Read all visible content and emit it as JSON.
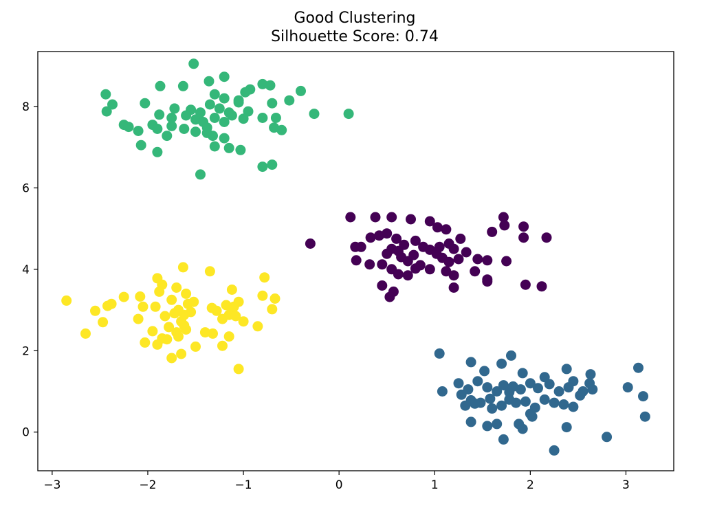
{
  "chart_data": {
    "type": "scatter",
    "title": "Good Clustering",
    "subtitle": "Silhouette Score: 0.74",
    "xlabel": "",
    "ylabel": "",
    "xlim": [
      -3.15,
      3.5
    ],
    "ylim": [
      -0.95,
      9.35
    ],
    "xticks": [
      -3,
      -2,
      -1,
      0,
      1,
      2,
      3
    ],
    "xtick_labels": [
      "−3",
      "−2",
      "−1",
      "0",
      "1",
      "2",
      "3"
    ],
    "yticks": [
      0,
      2,
      4,
      6,
      8
    ],
    "ytick_labels": [
      "0",
      "2",
      "4",
      "6",
      "8"
    ],
    "grid": false,
    "legend": "none",
    "series": [
      {
        "color": "#440154",
        "points": [
          [
            0.12,
            5.28
          ],
          [
            0.38,
            5.28
          ],
          [
            0.55,
            5.28
          ],
          [
            0.75,
            5.23
          ],
          [
            0.95,
            5.18
          ],
          [
            1.03,
            5.03
          ],
          [
            1.12,
            4.98
          ],
          [
            1.72,
            5.28
          ],
          [
            1.73,
            5.08
          ],
          [
            1.93,
            5.05
          ],
          [
            1.93,
            4.78
          ],
          [
            2.17,
            4.78
          ],
          [
            1.6,
            4.92
          ],
          [
            -0.3,
            4.63
          ],
          [
            0.17,
            4.55
          ],
          [
            0.23,
            4.55
          ],
          [
            0.33,
            4.78
          ],
          [
            0.42,
            4.83
          ],
          [
            0.5,
            4.88
          ],
          [
            0.6,
            4.75
          ],
          [
            0.68,
            4.6
          ],
          [
            0.8,
            4.7
          ],
          [
            0.88,
            4.55
          ],
          [
            0.95,
            4.48
          ],
          [
            1.05,
            4.55
          ],
          [
            1.15,
            4.63
          ],
          [
            1.2,
            4.5
          ],
          [
            1.27,
            4.75
          ],
          [
            1.33,
            4.42
          ],
          [
            1.45,
            4.25
          ],
          [
            1.55,
            4.22
          ],
          [
            1.75,
            4.2
          ],
          [
            0.18,
            4.22
          ],
          [
            0.32,
            4.12
          ],
          [
            0.5,
            4.38
          ],
          [
            0.55,
            4.5
          ],
          [
            0.62,
            4.45
          ],
          [
            0.65,
            4.3
          ],
          [
            0.72,
            4.2
          ],
          [
            0.78,
            4.35
          ],
          [
            0.85,
            4.1
          ],
          [
            0.95,
            4.0
          ],
          [
            1.02,
            4.38
          ],
          [
            1.08,
            4.28
          ],
          [
            1.15,
            4.18
          ],
          [
            1.25,
            4.25
          ],
          [
            0.45,
            4.12
          ],
          [
            0.55,
            4.0
          ],
          [
            0.62,
            3.88
          ],
          [
            0.72,
            3.85
          ],
          [
            0.8,
            4.02
          ],
          [
            1.12,
            3.95
          ],
          [
            1.2,
            3.85
          ],
          [
            1.42,
            3.95
          ],
          [
            1.55,
            3.75
          ],
          [
            1.95,
            3.62
          ],
          [
            2.12,
            3.58
          ],
          [
            0.45,
            3.6
          ],
          [
            0.57,
            3.45
          ],
          [
            0.53,
            3.32
          ],
          [
            1.2,
            3.55
          ],
          [
            1.55,
            3.7
          ]
        ]
      },
      {
        "color": "#31688e",
        "points": [
          [
            1.05,
            1.93
          ],
          [
            1.38,
            1.72
          ],
          [
            1.52,
            1.5
          ],
          [
            1.7,
            1.68
          ],
          [
            1.8,
            1.88
          ],
          [
            1.92,
            1.45
          ],
          [
            2.15,
            1.35
          ],
          [
            2.38,
            1.55
          ],
          [
            2.45,
            1.25
          ],
          [
            2.63,
            1.42
          ],
          [
            3.13,
            1.58
          ],
          [
            1.25,
            1.2
          ],
          [
            1.35,
            1.05
          ],
          [
            1.45,
            1.25
          ],
          [
            1.55,
            1.1
          ],
          [
            1.65,
            1.0
          ],
          [
            1.72,
            1.15
          ],
          [
            1.78,
            0.98
          ],
          [
            1.82,
            1.12
          ],
          [
            1.9,
            1.05
          ],
          [
            2.0,
            1.2
          ],
          [
            2.08,
            1.08
          ],
          [
            2.2,
            1.18
          ],
          [
            2.3,
            1.0
          ],
          [
            2.4,
            1.1
          ],
          [
            2.55,
            1.0
          ],
          [
            2.62,
            1.2
          ],
          [
            2.65,
            1.05
          ],
          [
            3.02,
            1.1
          ],
          [
            1.08,
            1.0
          ],
          [
            1.28,
            0.92
          ],
          [
            1.38,
            0.78
          ],
          [
            1.48,
            0.72
          ],
          [
            1.58,
            0.82
          ],
          [
            1.7,
            0.65
          ],
          [
            1.78,
            0.8
          ],
          [
            1.85,
            0.72
          ],
          [
            1.95,
            0.75
          ],
          [
            2.05,
            0.6
          ],
          [
            2.15,
            0.8
          ],
          [
            2.25,
            0.72
          ],
          [
            2.35,
            0.68
          ],
          [
            2.45,
            0.62
          ],
          [
            2.52,
            0.9
          ],
          [
            3.18,
            0.88
          ],
          [
            1.32,
            0.65
          ],
          [
            1.42,
            0.7
          ],
          [
            1.6,
            0.58
          ],
          [
            2.0,
            0.45
          ],
          [
            2.02,
            0.38
          ],
          [
            3.2,
            0.38
          ],
          [
            1.38,
            0.25
          ],
          [
            1.55,
            0.15
          ],
          [
            1.65,
            0.2
          ],
          [
            1.88,
            0.2
          ],
          [
            1.92,
            0.08
          ],
          [
            2.38,
            0.12
          ],
          [
            1.72,
            -0.18
          ],
          [
            2.25,
            -0.45
          ],
          [
            2.8,
            -0.12
          ]
        ]
      },
      {
        "color": "#35b779",
        "points": [
          [
            -1.52,
            9.05
          ],
          [
            -1.2,
            8.73
          ],
          [
            -0.8,
            8.55
          ],
          [
            -0.72,
            8.52
          ],
          [
            -0.93,
            8.42
          ],
          [
            -1.63,
            8.5
          ],
          [
            -1.87,
            8.5
          ],
          [
            -1.36,
            8.62
          ],
          [
            -0.4,
            8.38
          ],
          [
            -0.98,
            8.35
          ],
          [
            -2.44,
            8.3
          ],
          [
            -1.3,
            8.3
          ],
          [
            -1.2,
            8.2
          ],
          [
            -1.05,
            8.15
          ],
          [
            -2.37,
            8.05
          ],
          [
            -2.03,
            8.08
          ],
          [
            -1.72,
            7.95
          ],
          [
            -1.55,
            7.92
          ],
          [
            -1.45,
            7.85
          ],
          [
            -1.35,
            8.05
          ],
          [
            -1.25,
            7.95
          ],
          [
            -1.15,
            7.85
          ],
          [
            -1.05,
            8.1
          ],
          [
            -0.95,
            7.88
          ],
          [
            -0.7,
            8.08
          ],
          [
            -0.52,
            8.15
          ],
          [
            -0.26,
            7.82
          ],
          [
            0.1,
            7.82
          ],
          [
            -2.43,
            7.88
          ],
          [
            -1.88,
            7.8
          ],
          [
            -1.75,
            7.72
          ],
          [
            -1.6,
            7.78
          ],
          [
            -1.5,
            7.68
          ],
          [
            -1.42,
            7.62
          ],
          [
            -1.3,
            7.72
          ],
          [
            -1.2,
            7.62
          ],
          [
            -1.12,
            7.78
          ],
          [
            -1.0,
            7.7
          ],
          [
            -0.8,
            7.72
          ],
          [
            -0.66,
            7.72
          ],
          [
            -2.25,
            7.55
          ],
          [
            -2.2,
            7.5
          ],
          [
            -1.95,
            7.55
          ],
          [
            -1.9,
            7.45
          ],
          [
            -1.75,
            7.52
          ],
          [
            -1.62,
            7.45
          ],
          [
            -1.5,
            7.38
          ],
          [
            -1.38,
            7.48
          ],
          [
            -1.32,
            7.28
          ],
          [
            -1.2,
            7.22
          ],
          [
            -2.1,
            7.4
          ],
          [
            -1.8,
            7.28
          ],
          [
            -1.38,
            7.35
          ],
          [
            -0.6,
            7.42
          ],
          [
            -0.68,
            7.48
          ],
          [
            -2.07,
            7.05
          ],
          [
            -1.3,
            7.02
          ],
          [
            -1.15,
            6.98
          ],
          [
            -1.03,
            6.93
          ],
          [
            -1.9,
            6.88
          ],
          [
            -0.8,
            6.52
          ],
          [
            -0.7,
            6.57
          ],
          [
            -1.45,
            6.33
          ]
        ]
      },
      {
        "color": "#fde725",
        "points": [
          [
            -2.85,
            3.23
          ],
          [
            -2.65,
            2.42
          ],
          [
            -2.55,
            2.98
          ],
          [
            -2.47,
            2.7
          ],
          [
            -2.42,
            3.1
          ],
          [
            -2.38,
            3.15
          ],
          [
            -2.25,
            3.32
          ],
          [
            -2.1,
            2.78
          ],
          [
            -2.08,
            3.33
          ],
          [
            -2.05,
            3.08
          ],
          [
            -2.03,
            2.2
          ],
          [
            -1.92,
            3.08
          ],
          [
            -1.9,
            3.78
          ],
          [
            -1.88,
            3.45
          ],
          [
            -1.85,
            2.3
          ],
          [
            -1.82,
            2.85
          ],
          [
            -1.78,
            2.58
          ],
          [
            -1.75,
            3.25
          ],
          [
            -1.72,
            2.92
          ],
          [
            -1.7,
            2.45
          ],
          [
            -1.68,
            3.0
          ],
          [
            -1.65,
            2.72
          ],
          [
            -1.62,
            2.88
          ],
          [
            -1.6,
            2.52
          ],
          [
            -1.58,
            3.15
          ],
          [
            -1.55,
            2.95
          ],
          [
            -1.52,
            3.2
          ],
          [
            -1.5,
            2.1
          ],
          [
            -1.63,
            4.05
          ],
          [
            -1.35,
            3.95
          ],
          [
            -1.33,
            3.05
          ],
          [
            -1.28,
            2.98
          ],
          [
            -1.22,
            2.78
          ],
          [
            -1.18,
            3.12
          ],
          [
            -1.15,
            2.88
          ],
          [
            -1.12,
            2.95
          ],
          [
            -1.1,
            3.08
          ],
          [
            -1.05,
            3.2
          ],
          [
            -1.08,
            2.85
          ],
          [
            -1.12,
            3.5
          ],
          [
            -1.22,
            2.12
          ],
          [
            -1.15,
            2.35
          ],
          [
            -1.05,
            1.55
          ],
          [
            -1.0,
            2.72
          ],
          [
            -0.8,
            3.35
          ],
          [
            -0.78,
            3.8
          ],
          [
            -0.7,
            3.02
          ],
          [
            -0.67,
            3.28
          ],
          [
            -0.85,
            2.6
          ],
          [
            -1.32,
            2.42
          ],
          [
            -1.4,
            2.45
          ],
          [
            -1.65,
            1.92
          ],
          [
            -1.75,
            1.82
          ],
          [
            -1.68,
            2.35
          ],
          [
            -1.62,
            2.62
          ],
          [
            -1.9,
            2.15
          ],
          [
            -1.8,
            2.28
          ],
          [
            -1.95,
            2.48
          ],
          [
            -1.85,
            3.62
          ],
          [
            -1.7,
            3.55
          ],
          [
            -1.6,
            3.4
          ]
        ]
      }
    ]
  }
}
